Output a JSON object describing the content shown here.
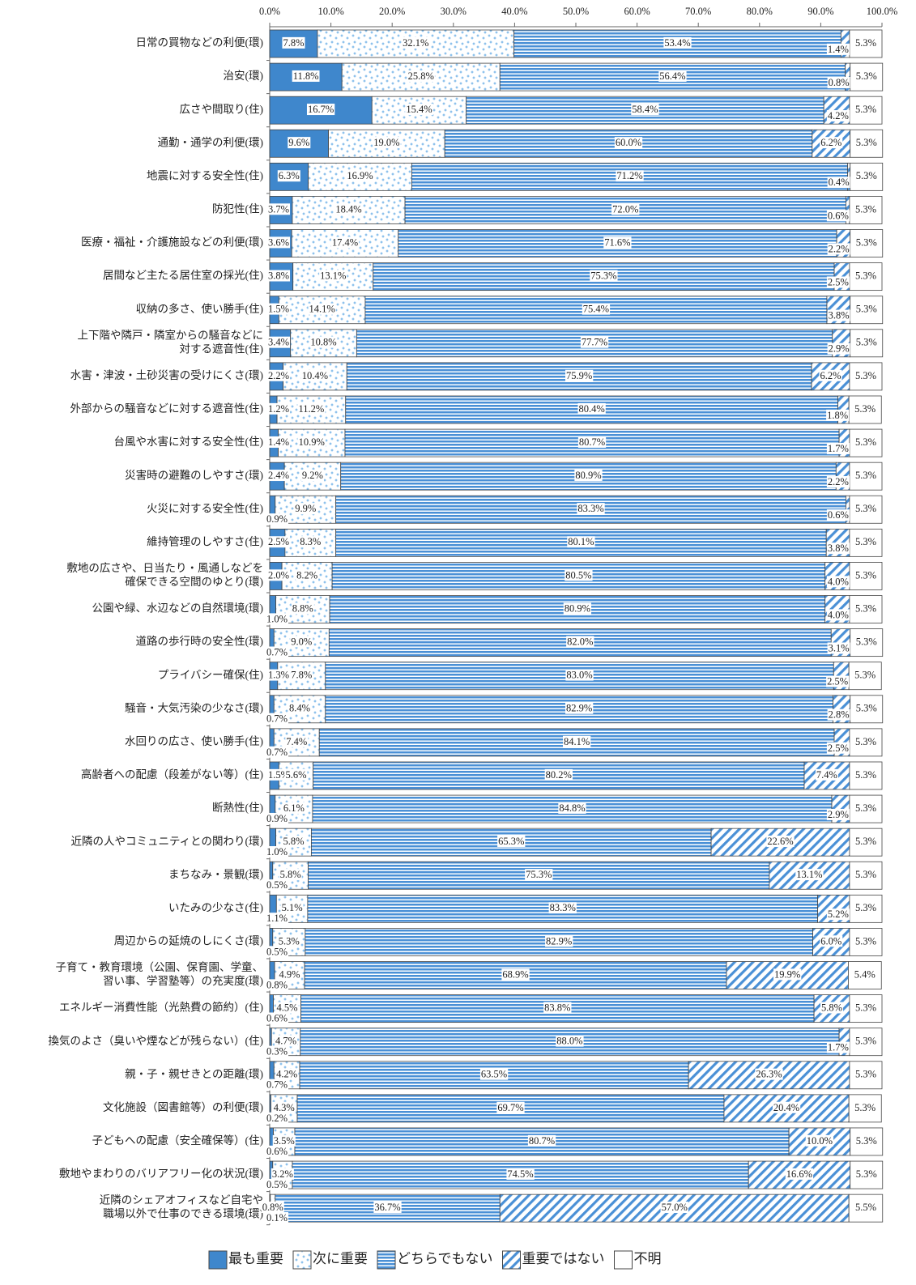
{
  "chart_data": {
    "type": "stacked-barh",
    "categories": [
      "日常の買物などの利便(環)",
      "治安(環)",
      "広さや間取り(住)",
      "通勤・通学の利便(環)",
      "地震に対する安全性(住)",
      "防犯性(住)",
      "医療・福祉・介護施設などの利便(環)",
      "居間など主たる居住室の採光(住)",
      "収納の多さ、使い勝手(住)",
      "上下階や隣戸・隣室からの騒音などに\n対する遮音性(住)",
      "水害・津波・土砂災害の受けにくさ(環)",
      "外部からの騒音などに対する遮音性(住)",
      "台風や水害に対する安全性(住)",
      "災害時の避難のしやすさ(環)",
      "火災に対する安全性(住)",
      "維持管理のしやすさ(住)",
      "敷地の広さや、日当たり・風通しなどを\n確保できる空間のゆとり(環)",
      "公園や緑、水辺などの自然環境(環)",
      "道路の歩行時の安全性(環)",
      "プライバシー確保(住)",
      "騒音・大気汚染の少なさ(環)",
      "水回りの広さ、使い勝手(住)",
      "高齢者への配慮（段差がない等）(住)",
      "断熱性(住)",
      "近隣の人やコミュニティとの関わり(環)",
      "まちなみ・景観(環)",
      "いたみの少なさ(住)",
      "周辺からの延焼のしにくさ(環)",
      "子育て・教育環境（公園、保育園、学童、\n習い事、学習塾等）の充実度(環)",
      "エネルギー消費性能（光熱費の節約）(住)",
      "換気のよさ（臭いや煙などが残らない）(住)",
      "親・子・親せきとの距離(環)",
      "文化施設（図書館等）の利便(環)",
      "子どもへの配慮（安全確保等）(住)",
      "敷地やまわりのバリアフリー化の状況(環)",
      "近隣のシェアオフィスなど自宅や\n職場以外で仕事のできる環境(環)"
    ],
    "series": [
      {
        "name": "最も重要",
        "color": "#3f87cc",
        "pattern": "solid",
        "values": [
          7.8,
          11.8,
          16.7,
          9.6,
          6.3,
          3.7,
          3.6,
          3.8,
          1.5,
          3.4,
          2.2,
          1.2,
          1.4,
          2.4,
          0.9,
          2.5,
          2.0,
          1.0,
          0.7,
          1.3,
          0.7,
          0.7,
          1.5,
          0.9,
          1.0,
          0.5,
          1.1,
          0.5,
          0.8,
          0.6,
          0.3,
          0.7,
          0.2,
          0.6,
          0.5,
          0.1
        ],
        "value_labels": [
          "7.8%",
          "11.8%",
          "16.7%",
          "9.6%",
          "6.3%",
          "3.7%",
          "3.6%",
          "3.8%",
          "1.5%",
          "3.4%",
          "2.2%",
          "1.2%",
          "1.4%",
          "2.4%",
          "0.9%",
          "2.5%",
          "2.0%",
          "1.0%",
          "0.7%",
          "1.3%",
          "0.7%",
          "0.7%",
          "1.5%",
          "0.9%",
          "1.0%",
          "0.5%",
          "1.1%",
          "0.5%",
          "0.8%",
          "0.6%",
          "0.3%",
          "0.7%",
          "0.2%",
          "0.6%",
          "0.5%",
          "0.1%"
        ]
      },
      {
        "name": "次に重要",
        "color": "#6aaee6",
        "pattern": "dots",
        "values": [
          32.1,
          25.8,
          15.4,
          19.0,
          16.9,
          18.4,
          17.4,
          13.1,
          14.1,
          10.8,
          10.4,
          11.2,
          10.9,
          9.2,
          9.9,
          8.3,
          8.2,
          8.8,
          9.0,
          7.8,
          8.4,
          7.4,
          5.6,
          6.1,
          5.8,
          5.8,
          5.1,
          5.3,
          4.9,
          4.5,
          4.7,
          4.2,
          4.3,
          3.5,
          3.2,
          0.8
        ],
        "value_labels": [
          "32.1%",
          "25.8%",
          "15.4%",
          "19.0%",
          "16.9%",
          "18.4%",
          "17.4%",
          "13.1%",
          "14.1%",
          "10.8%",
          "10.4%",
          "11.2%",
          "10.9%",
          "9.2%",
          "9.9%",
          "8.3%",
          "8.2%",
          "8.8%",
          "9.0%",
          "7.8%",
          "8.4%",
          "7.4%",
          "5.6%",
          "6.1%",
          "5.8%",
          "5.8%",
          "5.1%",
          "5.3%",
          "4.9%",
          "4.5%",
          "4.7%",
          "4.2%",
          "4.3%",
          "3.5%",
          "3.2%",
          "0.8%"
        ]
      },
      {
        "name": "どちらでもない",
        "color": "#4a90d6",
        "pattern": "horizontal",
        "values": [
          53.4,
          56.4,
          58.4,
          60.0,
          71.2,
          72.0,
          71.6,
          75.3,
          75.4,
          77.7,
          75.9,
          80.4,
          80.7,
          80.9,
          83.3,
          80.1,
          80.5,
          80.9,
          82.0,
          83.0,
          82.9,
          84.1,
          80.2,
          84.8,
          65.3,
          75.3,
          83.3,
          82.9,
          68.9,
          83.8,
          88.0,
          63.5,
          69.7,
          80.7,
          74.5,
          36.7
        ],
        "value_labels": [
          "53.4%",
          "56.4%",
          "58.4%",
          "60.0%",
          "71.2%",
          "72.0%",
          "71.6%",
          "75.3%",
          "75.4%",
          "77.7%",
          "75.9%",
          "80.4%",
          "80.7%",
          "80.9%",
          "83.3%",
          "80.1%",
          "80.5%",
          "80.9%",
          "82.0%",
          "83.0%",
          "82.9%",
          "84.1%",
          "80.2%",
          "84.8%",
          "65.3%",
          "75.3%",
          "83.3%",
          "82.9%",
          "68.9%",
          "83.8%",
          "88.0%",
          "63.5%",
          "69.7%",
          "80.7%",
          "74.5%",
          "36.7%"
        ]
      },
      {
        "name": "重要ではない",
        "color": "#4a90d6",
        "pattern": "diagonal",
        "values": [
          1.4,
          0.8,
          4.2,
          6.2,
          0.4,
          0.6,
          2.2,
          2.5,
          3.8,
          2.9,
          6.2,
          1.8,
          1.7,
          2.2,
          0.6,
          3.8,
          4.0,
          4.0,
          3.1,
          2.5,
          2.8,
          2.5,
          7.4,
          2.9,
          22.6,
          13.1,
          5.2,
          6.0,
          19.9,
          5.8,
          1.7,
          26.3,
          20.4,
          10.0,
          16.6,
          57.0
        ],
        "value_labels": [
          "1.4%",
          "0.8%",
          "4.2%",
          "6.2%",
          "0.4%",
          "0.6%",
          "2.2%",
          "2.5%",
          "3.8%",
          "2.9%",
          "6.2%",
          "1.8%",
          "1.7%",
          "2.2%",
          "0.6%",
          "3.8%",
          "4.0%",
          "4.0%",
          "3.1%",
          "2.5%",
          "2.8%",
          "2.5%",
          "7.4%",
          "2.9%",
          "22.6%",
          "13.1%",
          "5.2%",
          "6.0%",
          "19.9%",
          "5.8%",
          "1.7%",
          "26.3%",
          "20.4%",
          "10.0%",
          "16.6%",
          "57.0%"
        ]
      },
      {
        "name": "不明",
        "color": "#ffffff",
        "pattern": "none",
        "values": [
          5.3,
          5.3,
          5.3,
          5.3,
          5.3,
          5.3,
          5.3,
          5.3,
          5.3,
          5.3,
          5.3,
          5.3,
          5.3,
          5.3,
          5.3,
          5.3,
          5.3,
          5.3,
          5.3,
          5.3,
          5.3,
          5.3,
          5.3,
          5.3,
          5.3,
          5.3,
          5.3,
          5.3,
          5.4,
          5.3,
          5.3,
          5.3,
          5.3,
          5.3,
          5.3,
          5.5
        ],
        "value_labels": [
          "5.3%",
          "5.3%",
          "5.3%",
          "5.3%",
          "5.3%",
          "5.3%",
          "5.3%",
          "5.3%",
          "5.3%",
          "5.3%",
          "5.3%",
          "5.3%",
          "5.3%",
          "5.3%",
          "5.3%",
          "5.3%",
          "5.3%",
          "5.3%",
          "5.3%",
          "5.3%",
          "5.3%",
          "5.3%",
          "5.3%",
          "5.3%",
          "5.3%",
          "5.3%",
          "5.3%",
          "5.3%",
          "5.4%",
          "5.3%",
          "5.3%",
          "5.3%",
          "5.3%",
          "5.3%",
          "5.3%",
          "5.5%"
        ]
      }
    ],
    "xlim": [
      0,
      100
    ],
    "xticks": [
      {
        "value": 0,
        "label": "0.0%"
      },
      {
        "value": 10,
        "label": "10.0%"
      },
      {
        "value": 20,
        "label": "20.0%"
      },
      {
        "value": 30,
        "label": "30.0%"
      },
      {
        "value": 40,
        "label": "40.0%"
      },
      {
        "value": 50,
        "label": "50.0%"
      },
      {
        "value": 60,
        "label": "60.0%"
      },
      {
        "value": 70,
        "label": "70.0%"
      },
      {
        "value": 80,
        "label": "80.0%"
      },
      {
        "value": 90,
        "label": "90.0%"
      },
      {
        "value": 100,
        "label": "100.0%"
      }
    ],
    "legend": "bottom"
  }
}
